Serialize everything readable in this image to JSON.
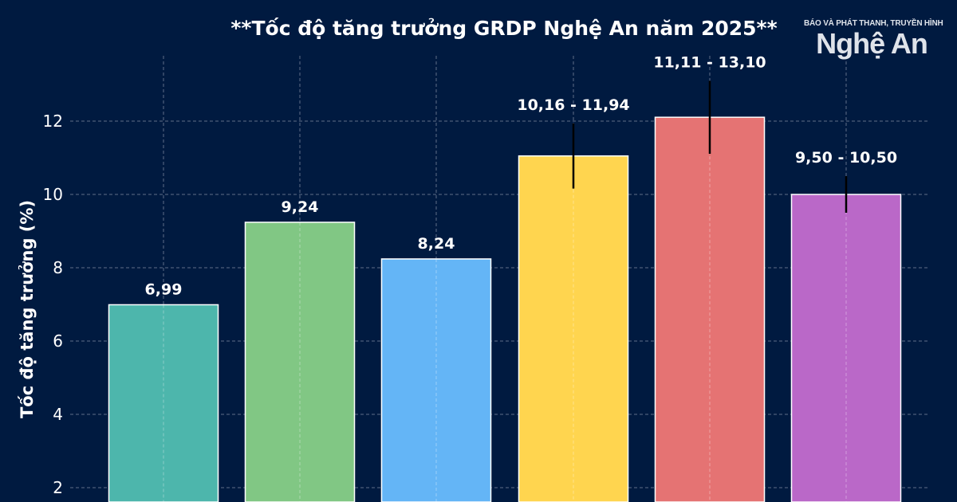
{
  "logo": {
    "top_line": "BÁO VÀ PHÁT THANH, TRUYỀN HÌNH",
    "main": "Nghệ An"
  },
  "chart_data": {
    "type": "bar",
    "title": "**Tốc độ tăng trưởng GRDP Nghệ An năm 2025**",
    "ylabel": "Tốc độ tăng trưởng (%)",
    "xlabel": "",
    "ylim": [
      0,
      14
    ],
    "yticks": [
      2,
      4,
      6,
      8,
      10,
      12
    ],
    "grid": true,
    "values": [
      6.99,
      9.24,
      8.24,
      11.05,
      12.105,
      10.0
    ],
    "error_ranges": [
      null,
      null,
      null,
      [
        10.16,
        11.94
      ],
      [
        11.11,
        13.1
      ],
      [
        9.5,
        10.5
      ]
    ],
    "data_labels": [
      "6,99",
      "9,24",
      "8,24",
      "10,16 - 11,94",
      "11,11 - 13,10",
      "9,50 - 10,50"
    ],
    "colors": [
      "#4DB6AC",
      "#81C784",
      "#64B5F6",
      "#FFD54F",
      "#E57373",
      "#BA68C8"
    ],
    "background": "#001a40"
  }
}
